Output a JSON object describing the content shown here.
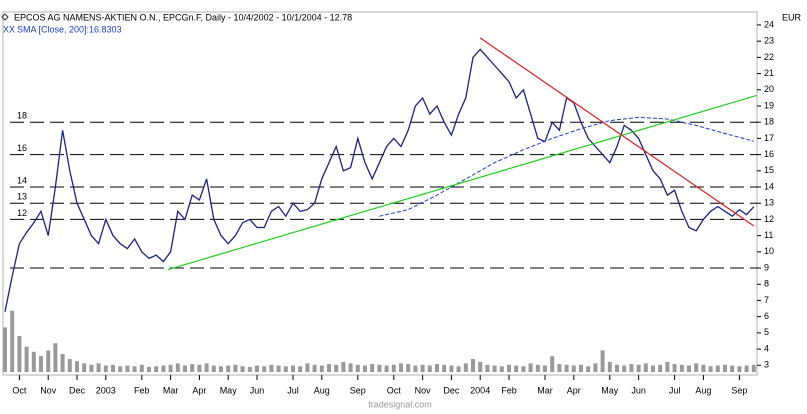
{
  "chart_data": {
    "type": "line",
    "title": "EPCOS AG NAMENS-AKTIEN O.N., EPCGn.F, Daily - 10/4/2002 - 10/1/2004 - 12.78",
    "legend_marker": "XX",
    "subtitle": "SMA [Close, 200]:16.8303",
    "currency": "EUR",
    "watermark": "tradesignal.com",
    "xlim": [
      0,
      104
    ],
    "xticks": [
      {
        "value": 2,
        "label": "Oct"
      },
      {
        "value": 6,
        "label": "Nov"
      },
      {
        "value": 10,
        "label": "Dec"
      },
      {
        "value": 14,
        "label": "2003"
      },
      {
        "value": 19,
        "label": "Feb"
      },
      {
        "value": 23,
        "label": "Mar"
      },
      {
        "value": 27,
        "label": "Apr"
      },
      {
        "value": 31,
        "label": "May"
      },
      {
        "value": 35,
        "label": "Jun"
      },
      {
        "value": 40,
        "label": "Jul"
      },
      {
        "value": 44,
        "label": "Aug"
      },
      {
        "value": 49,
        "label": "Sep"
      },
      {
        "value": 54,
        "label": "Oct"
      },
      {
        "value": 58,
        "label": "Nov"
      },
      {
        "value": 62,
        "label": "Dec"
      },
      {
        "value": 66,
        "label": "2004"
      },
      {
        "value": 70,
        "label": "Feb"
      },
      {
        "value": 75,
        "label": "Mar"
      },
      {
        "value": 79,
        "label": "Apr"
      },
      {
        "value": 84,
        "label": "May"
      },
      {
        "value": 88,
        "label": "Jun"
      },
      {
        "value": 93,
        "label": "Jul"
      },
      {
        "value": 97,
        "label": "Aug"
      },
      {
        "value": 102,
        "label": "Sep"
      }
    ],
    "ylim": [
      2.4,
      24.8
    ],
    "yticks": [
      3,
      4,
      5,
      6,
      7,
      8,
      9,
      10,
      11,
      12,
      13,
      14,
      15,
      16,
      17,
      18,
      19,
      20,
      21,
      22,
      23,
      24
    ],
    "price": {
      "color": "#1a237e",
      "values": [
        6.3,
        8.5,
        10.5,
        11.2,
        11.8,
        12.5,
        11,
        14,
        17.5,
        15,
        13,
        12,
        11,
        10.5,
        12,
        11,
        10.5,
        10.2,
        10.8,
        10,
        9.6,
        9.8,
        9.4,
        10,
        12.5,
        12,
        13.5,
        13.2,
        14.5,
        12,
        11,
        10.5,
        11,
        11.8,
        12,
        11.5,
        11.5,
        12.5,
        12.8,
        12.2,
        13,
        12.5,
        12.6,
        13,
        14.5,
        15.5,
        16.5,
        15,
        15.2,
        17,
        15.5,
        14.5,
        15.5,
        16.5,
        17,
        16.5,
        17.5,
        19,
        19.5,
        18.5,
        19,
        18,
        17.2,
        18.5,
        19.5,
        22,
        22.5,
        22,
        21.5,
        21,
        20.5,
        19.5,
        20,
        18.5,
        17,
        16.8,
        18,
        17.5,
        19.5,
        19.2,
        18,
        17,
        16.5,
        16,
        15.5,
        16.5,
        17.8,
        17.5,
        17,
        16,
        15,
        14.5,
        13.5,
        13.8,
        12.5,
        11.5,
        11.3,
        12,
        12.5,
        12.8,
        12.5,
        12.2,
        12.6,
        12.3,
        12.78
      ]
    },
    "sma": {
      "color": "#1a3fcc",
      "x": [
        52,
        56,
        60,
        64,
        68,
        72,
        76,
        80,
        84,
        88,
        92,
        96,
        100,
        104
      ],
      "values": [
        12.2,
        12.6,
        13.5,
        14.5,
        15.5,
        16.3,
        17,
        17.6,
        18.1,
        18.3,
        18.2,
        17.8,
        17.3,
        16.83
      ]
    },
    "trendlines": [
      {
        "color": "#22cc22",
        "x": [
          22.6,
          104.4
        ],
        "values": [
          8.9,
          19.65
        ]
      },
      {
        "color": "#dd2222",
        "x": [
          66,
          104
        ],
        "values": [
          23.2,
          11.6
        ]
      }
    ],
    "levels": [
      {
        "value": 18,
        "label": "18"
      },
      {
        "value": 16,
        "label": "16"
      },
      {
        "value": 14,
        "label": "14"
      },
      {
        "value": 13,
        "label": "13"
      },
      {
        "value": 12,
        "label": "12"
      },
      {
        "value": 9
      }
    ],
    "volume": {
      "color": "#999999",
      "vlim": [
        0,
        100
      ],
      "values": [
        62,
        85,
        50,
        35,
        28,
        22,
        30,
        40,
        25,
        18,
        15,
        12,
        10,
        12,
        9,
        10,
        8,
        9,
        8,
        10,
        7,
        8,
        9,
        10,
        12,
        9,
        11,
        10,
        12,
        9,
        8,
        9,
        10,
        8,
        7,
        9,
        8,
        10,
        9,
        8,
        9,
        8,
        12,
        10,
        9,
        11,
        10,
        14,
        12,
        10,
        9,
        11,
        10,
        9,
        10,
        12,
        11,
        9,
        10,
        9,
        11,
        10,
        9,
        8,
        12,
        18,
        14,
        10,
        9,
        8,
        10,
        9,
        8,
        12,
        10,
        9,
        22,
        11,
        10,
        9,
        10,
        8,
        12,
        30,
        14,
        10,
        9,
        11,
        10,
        12,
        9,
        10,
        14,
        11,
        10,
        9,
        12,
        10,
        8,
        9,
        10,
        9,
        8,
        9,
        10
      ]
    }
  }
}
